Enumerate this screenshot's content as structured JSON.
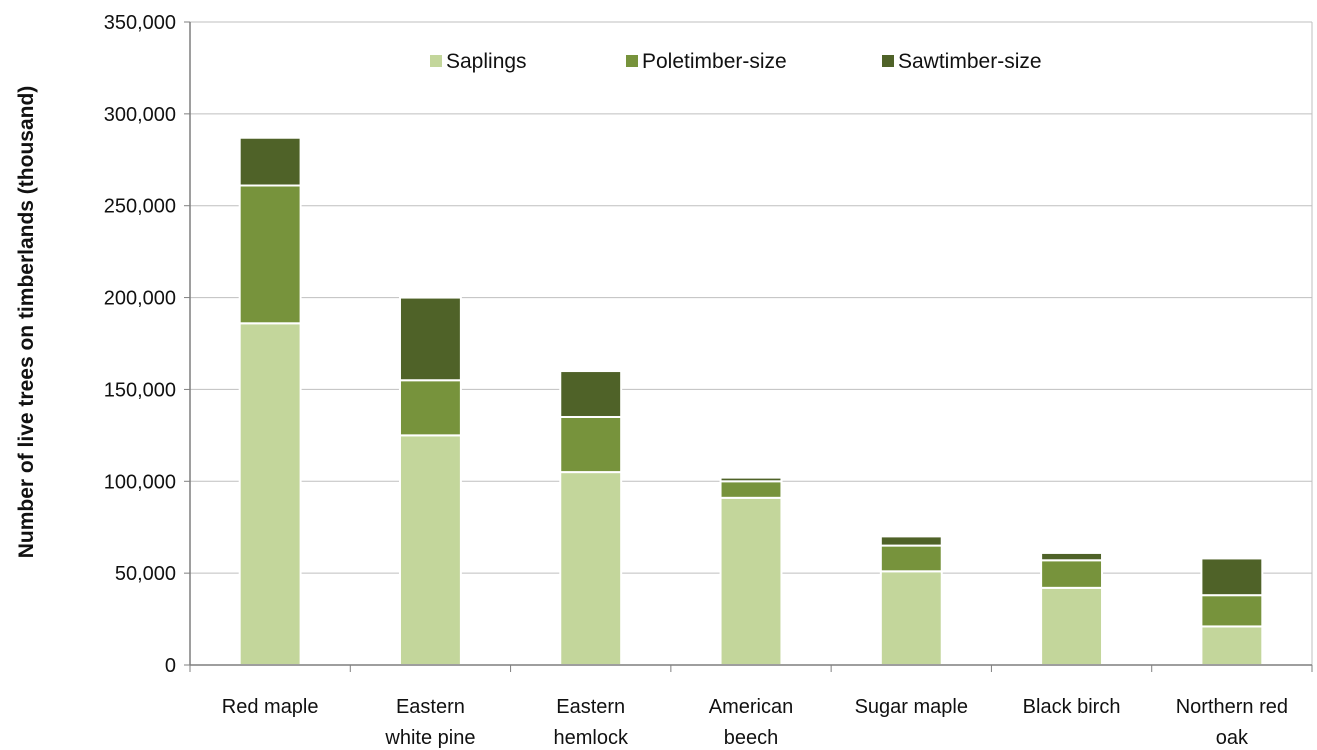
{
  "chart_data": {
    "type": "bar",
    "stacked": true,
    "title": "",
    "xlabel": "",
    "ylabel": "Number of live trees on timberlands (thousand)",
    "ylim": [
      0,
      350000
    ],
    "yticks": [
      0,
      50000,
      100000,
      150000,
      200000,
      250000,
      300000,
      350000
    ],
    "ytick_labels": [
      "0",
      "50,000",
      "100,000",
      "150,000",
      "200,000",
      "250,000",
      "300,000",
      "350,000"
    ],
    "grid": true,
    "legend_position": "top-center",
    "categories": [
      [
        "Red maple"
      ],
      [
        "Eastern",
        "white pine"
      ],
      [
        "Eastern",
        "hemlock"
      ],
      [
        "American",
        "beech"
      ],
      [
        "Sugar maple"
      ],
      [
        "Black birch"
      ],
      [
        "Northern red",
        "oak"
      ]
    ],
    "series": [
      {
        "name": "Saplings",
        "color": "#c3d69b",
        "values": [
          186000,
          125000,
          105000,
          91000,
          51000,
          42000,
          21000
        ]
      },
      {
        "name": "Poletimber-size",
        "color": "#77933c",
        "values": [
          75000,
          30000,
          30000,
          9000,
          14000,
          15000,
          17000
        ]
      },
      {
        "name": "Sawtimber-size",
        "color": "#4f6228",
        "values": [
          26000,
          45000,
          25000,
          2000,
          5000,
          4000,
          20000
        ]
      }
    ]
  }
}
